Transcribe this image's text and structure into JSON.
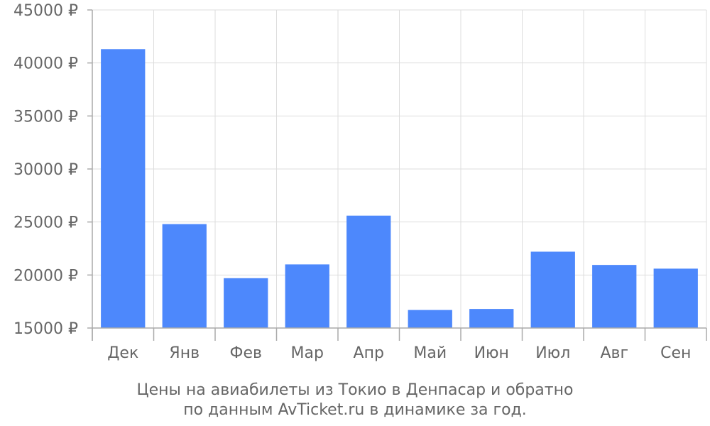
{
  "chart_data": {
    "type": "bar",
    "categories": [
      "Дек",
      "Янв",
      "Фев",
      "Мар",
      "Апр",
      "Май",
      "Июн",
      "Июл",
      "Авг",
      "Сен"
    ],
    "values": [
      41300,
      24800,
      19700,
      21000,
      25600,
      16700,
      16800,
      22200,
      20950,
      20600
    ],
    "ylim": [
      15000,
      45000
    ],
    "yticks": [
      15000,
      20000,
      25000,
      30000,
      35000,
      40000,
      45000
    ],
    "ytick_labels": [
      "15000 ₽",
      "20000 ₽",
      "25000 ₽",
      "30000 ₽",
      "35000 ₽",
      "40000 ₽",
      "45000 ₽"
    ],
    "grid": true,
    "legend": "none",
    "bar_color": "#4d88fc",
    "title": "",
    "xlabel": "",
    "ylabel": ""
  },
  "caption": {
    "line1": "Цены на авиабилеты из Токио в Денпасар и обратно",
    "line2": "по данным AvTicket.ru в динамике за год."
  }
}
